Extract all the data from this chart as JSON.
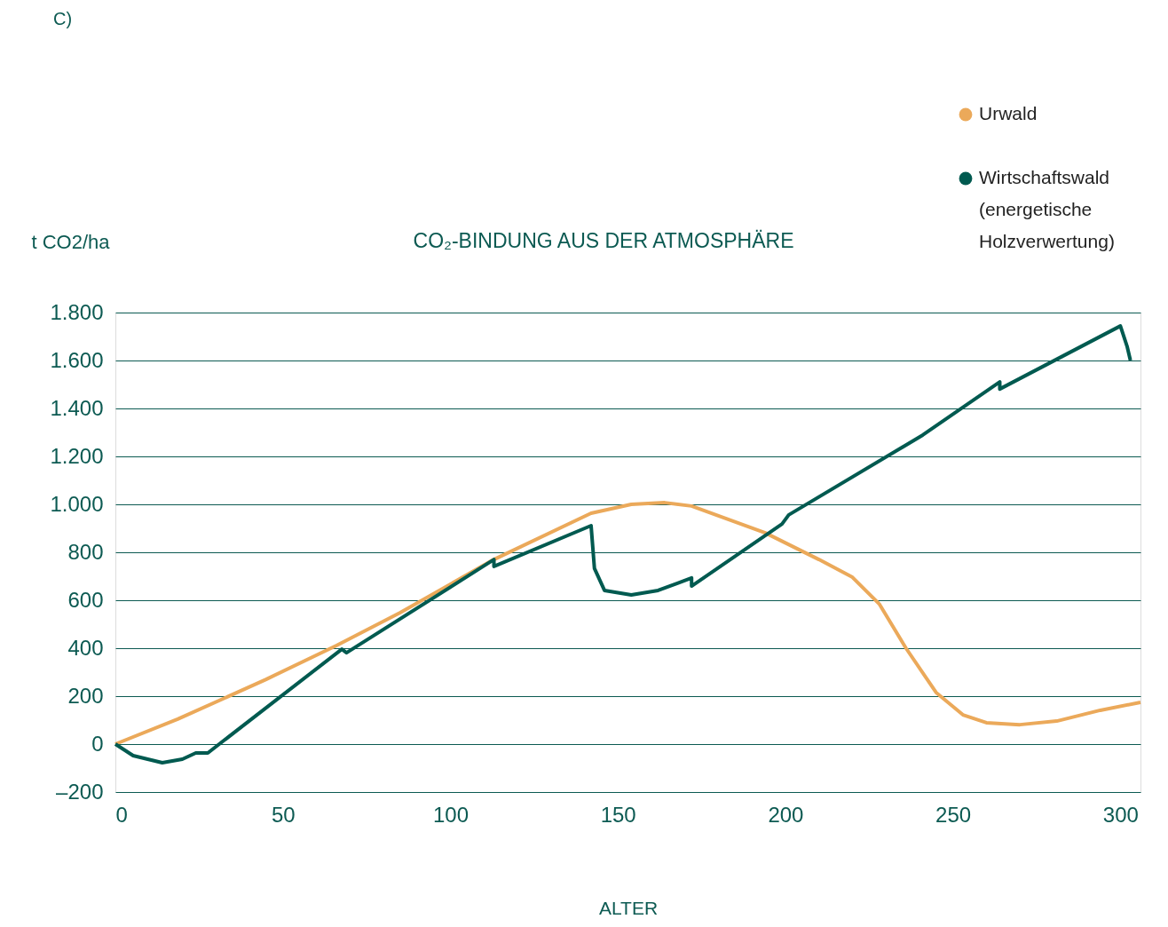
{
  "chart_data": {
    "type": "line",
    "title": "CO₂-BINDUNG AUS DER ATMOSPHÄRE",
    "xlabel": "ALTER",
    "ylabel": "t CO2/ha",
    "annotations": [
      "C)"
    ],
    "xlim": [
      0,
      306
    ],
    "xticks": [
      0,
      50,
      100,
      150,
      200,
      250,
      300
    ],
    "ylim": [
      -200,
      1800
    ],
    "yticks": [
      {
        "value": -200,
        "label": "–200"
      },
      0,
      200,
      400,
      600,
      800,
      {
        "value": 1000,
        "label": "1.000"
      },
      {
        "value": 1200,
        "label": "1.200"
      },
      {
        "value": 1400,
        "label": "1.400"
      },
      {
        "value": 1600,
        "label": "1.600"
      },
      {
        "value": 1800,
        "label": "1.800"
      }
    ],
    "grid": "y",
    "legend": "top right",
    "line_style": "solid",
    "marker": "none",
    "series": [
      {
        "name": "Urwald",
        "color": "#eba95a",
        "x": [
          0,
          18.6,
          45,
          66,
          85,
          113,
          142,
          154,
          164,
          172,
          194,
          210,
          220,
          228,
          236,
          245,
          253,
          260,
          270,
          281,
          294,
          306
        ],
        "values": [
          0,
          104,
          270,
          411,
          548,
          770,
          963,
          1000,
          1007,
          993,
          881,
          770,
          696,
          585,
          400,
          215,
          122,
          89,
          81,
          96,
          141,
          174
        ]
      },
      {
        "name": "Wirtschaftswald (energetische Holzverwertung)",
        "color": "#005a50",
        "x": [
          0,
          5.3,
          14,
          20,
          24,
          27.6,
          67.6,
          69,
          113,
          113,
          142,
          143,
          146,
          154,
          162,
          172,
          172,
          199,
          201,
          241,
          264,
          264,
          300,
          302,
          303
        ],
        "values": [
          0,
          -48,
          -78,
          -63,
          -37,
          -37,
          396,
          381,
          770,
          741,
          911,
          733,
          641,
          622,
          641,
          693,
          659,
          918,
          956,
          1289,
          1511,
          1481,
          1744,
          1659,
          1600
        ]
      }
    ]
  }
}
